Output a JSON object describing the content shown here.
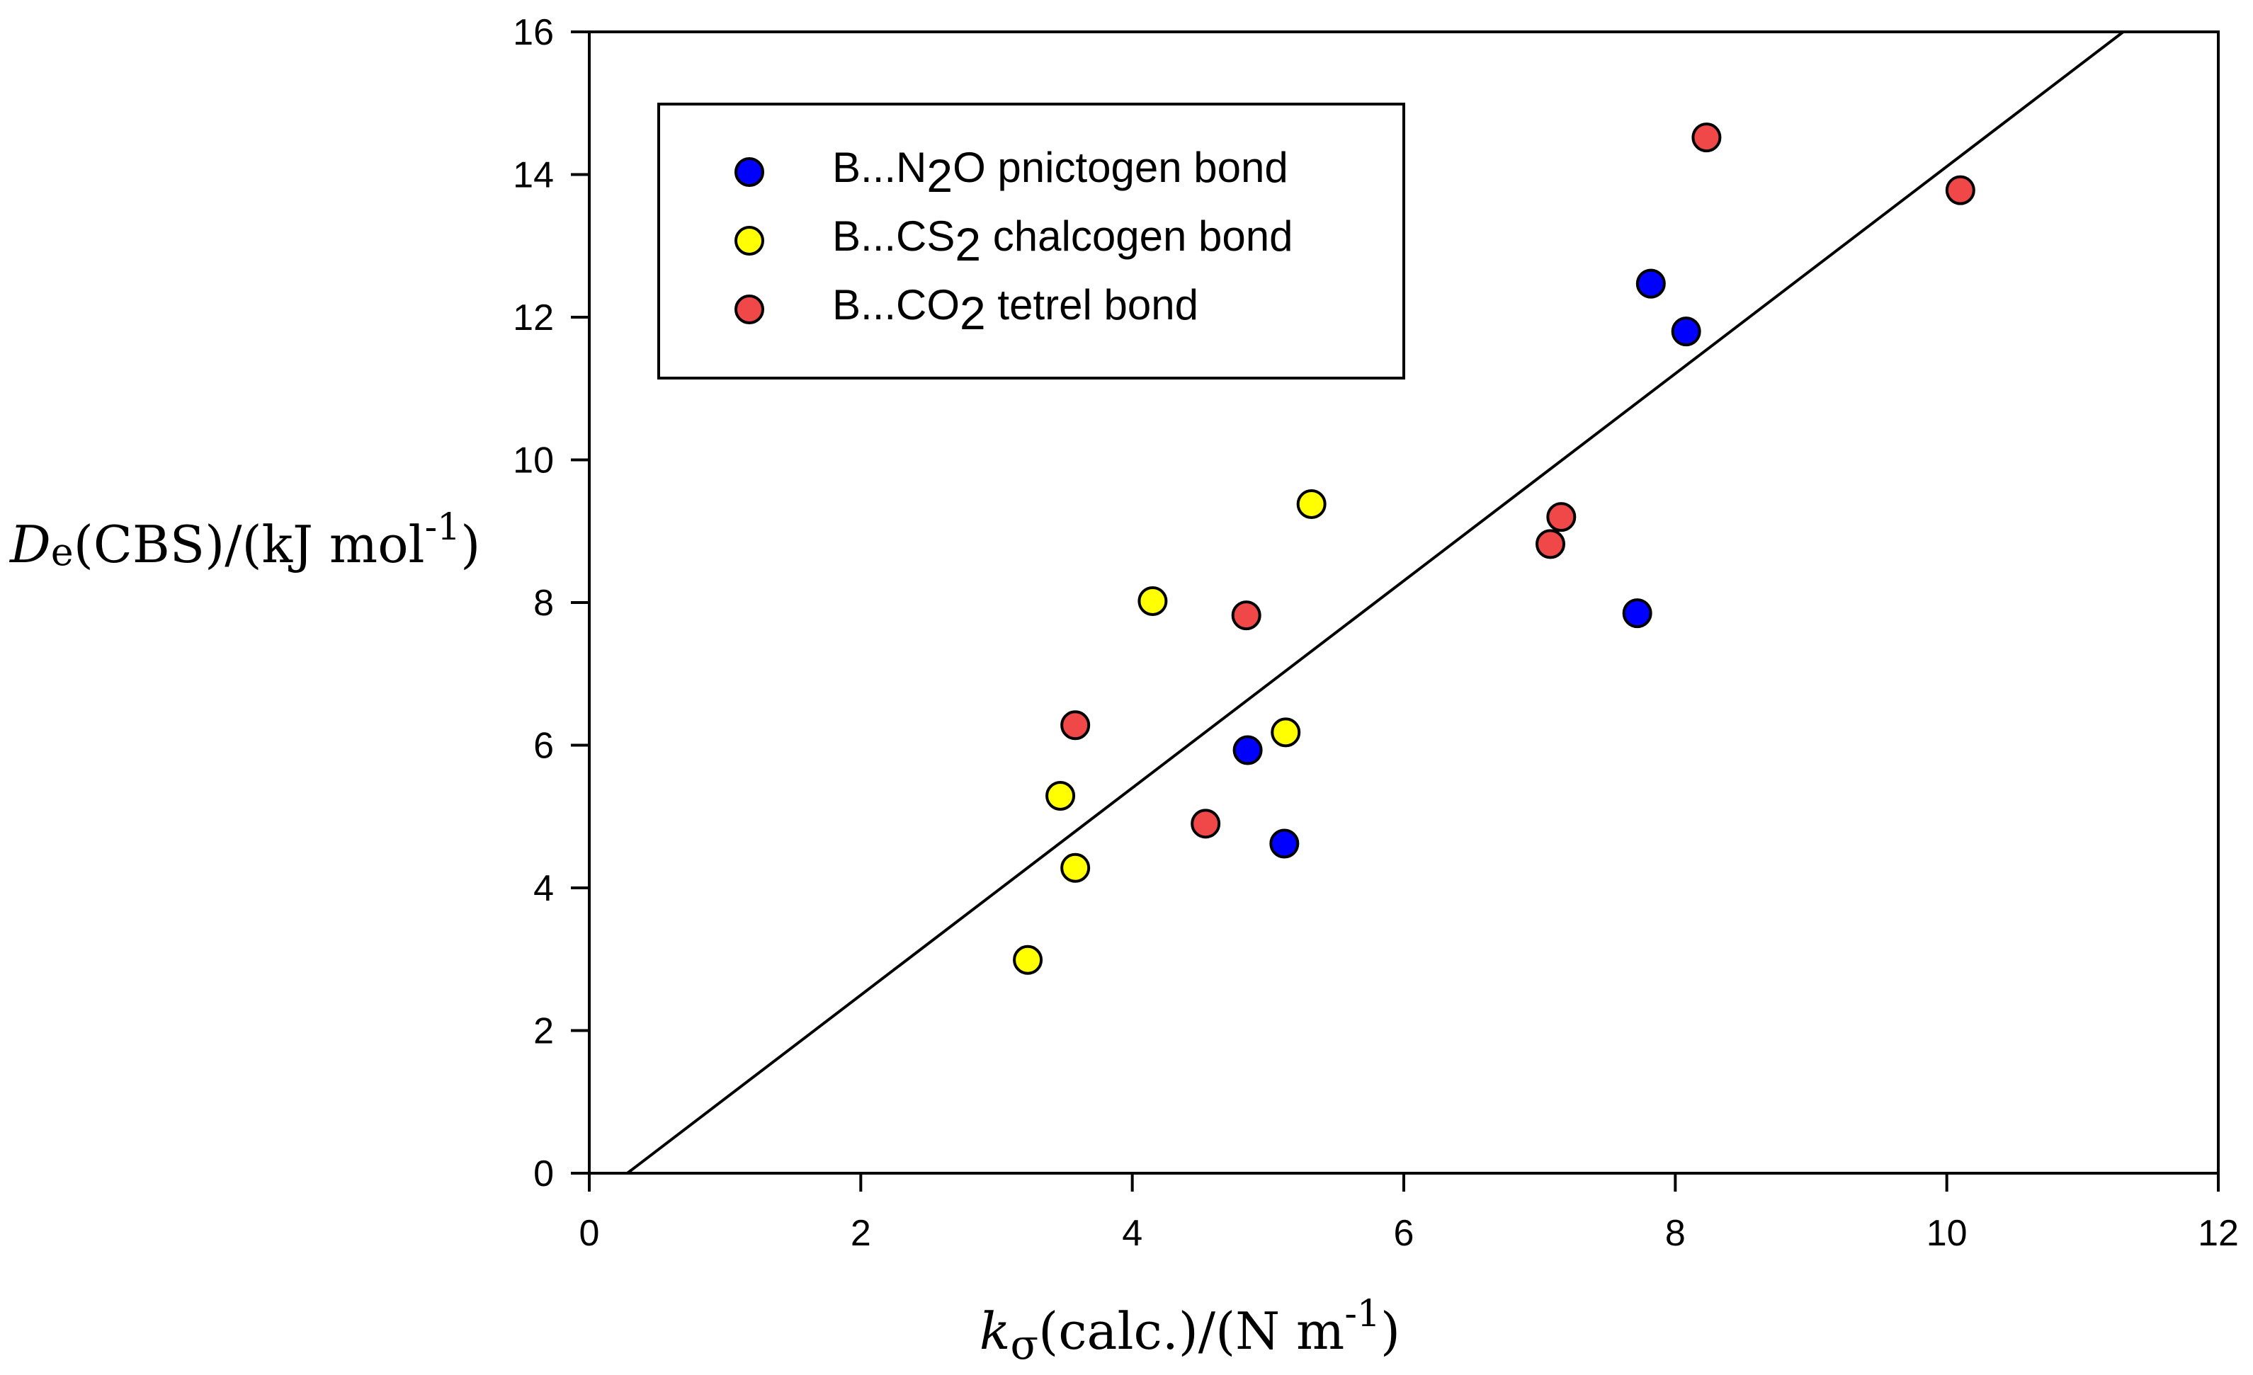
{
  "chart_data": {
    "type": "scatter",
    "title": "",
    "xlabel": {
      "symbol": "k",
      "subscript": "σ",
      "rest": "(calc.)/(N m",
      "superscript": "-1",
      "close": ")"
    },
    "ylabel": {
      "symbol": "D",
      "subscript": "e",
      "rest": "(CBS)/(kJ mol",
      "superscript": "-1",
      "close": ")"
    },
    "xlim": [
      0,
      12
    ],
    "ylim": [
      0,
      16
    ],
    "xticks": [
      "0",
      "2",
      "4",
      "6",
      "8",
      "10",
      "12"
    ],
    "yticks": [
      "0",
      "2",
      "4",
      "6",
      "8",
      "10",
      "12",
      "14",
      "16"
    ],
    "grid": false,
    "legend_position": "top-left",
    "series": [
      {
        "name": "B...N2O pnictogen bond",
        "legend": {
          "prefix": "B...N",
          "sub": "2",
          "suffix": "O pnictogen bond"
        },
        "color": "#0000ff",
        "x": [
          7.82,
          8.08,
          7.72,
          4.85,
          5.12
        ],
        "y": [
          12.47,
          11.8,
          7.85,
          5.93,
          4.62
        ]
      },
      {
        "name": "B...CS2 chalcogen bond",
        "legend": {
          "prefix": "B...CS",
          "sub": "2",
          "suffix": " chalcogen bond"
        },
        "color": "#ffff00",
        "x": [
          5.32,
          4.15,
          5.13,
          3.47,
          3.58,
          3.23
        ],
        "y": [
          9.38,
          8.02,
          6.18,
          5.29,
          4.28,
          2.99
        ]
      },
      {
        "name": "B...CO2 tetrel bond",
        "legend": {
          "prefix": "B...CO",
          "sub": "2",
          "suffix": " tetrel bond"
        },
        "color": "#f04848",
        "x": [
          8.23,
          10.1,
          7.16,
          7.08,
          4.84,
          3.58,
          4.54
        ],
        "y": [
          14.52,
          13.78,
          9.2,
          8.82,
          7.82,
          6.28,
          4.9
        ]
      }
    ],
    "fit_line": {
      "x": [
        0.28,
        11.3
      ],
      "y": [
        0,
        16
      ]
    }
  }
}
